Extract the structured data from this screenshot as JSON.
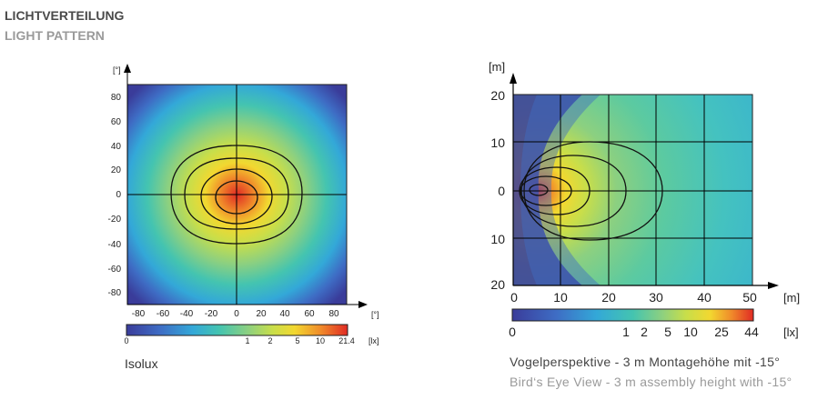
{
  "header": {
    "title_de": "LICHTVERTEILUNG",
    "title_en": "LIGHT PATTERN"
  },
  "chart_data": [
    {
      "type": "heatmap",
      "title": "",
      "caption": "Isolux",
      "ylabel": "[°]",
      "xlabel": "[°]",
      "x_ticks": [
        "-80",
        "-60",
        "-40",
        "-20",
        "0",
        "20",
        "40",
        "60",
        "80"
      ],
      "y_ticks": [
        "80",
        "60",
        "40",
        "20",
        "0",
        "-20",
        "-40",
        "-60",
        "-80"
      ],
      "xlim": [
        -90,
        90
      ],
      "ylim": [
        -90,
        90
      ],
      "grid": true,
      "color_scale": {
        "ticks": [
          "0",
          "1",
          "2",
          "5",
          "10",
          "21.4"
        ],
        "unit": "[lx]",
        "min": 0,
        "max": 21.4
      },
      "isolines_lx": [
        1,
        2,
        5,
        10
      ],
      "peak_lx": 21.4
    },
    {
      "type": "heatmap",
      "title": "",
      "ylabel": "[m]",
      "xlabel": "[m]",
      "x_ticks": [
        "0",
        "10",
        "20",
        "30",
        "40",
        "50"
      ],
      "y_ticks": [
        "20",
        "10",
        "0",
        "10",
        "20"
      ],
      "xlim": [
        0,
        50
      ],
      "ylim": [
        -20,
        20
      ],
      "grid": true,
      "color_scale": {
        "ticks": [
          "0",
          "1",
          "2",
          "5",
          "10",
          "25",
          "44"
        ],
        "unit": "[lx]",
        "min": 0,
        "max": 44
      },
      "isolines_lx": [
        1,
        2,
        5,
        10,
        25
      ],
      "peak_lx": 44,
      "caption_de": "Vogelperspektive - 3 m Montagehöhe mit -15°",
      "caption_en": "Bird‘s Eye View - 3 m assembly height with -15°"
    }
  ],
  "colors": {
    "scale": [
      "#3a3c9a",
      "#3e6cc4",
      "#33a8d8",
      "#44c4b0",
      "#8cd080",
      "#c8de4a",
      "#f2d830",
      "#f08a2a",
      "#e02a24"
    ]
  }
}
